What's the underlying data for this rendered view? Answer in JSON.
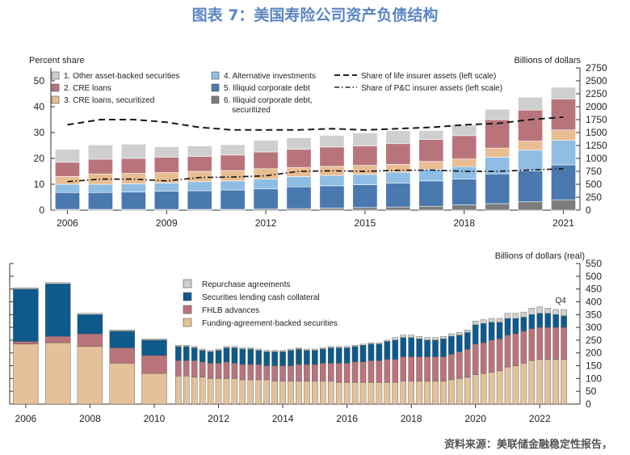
{
  "figure_title": "图表 7：美国寿险公司资产负债结构",
  "source": "资料来源：美联储金融稳定性报告，",
  "colors": {
    "title": "#5b86c5",
    "gray": "#cfcfcf",
    "mauve": "#b9747b",
    "peach": "#e9bd92",
    "lightblue": "#8fbde4",
    "steel": "#4a79b0",
    "darkgray": "#7c7c7c",
    "navy": "#0d5a8b",
    "tan": "#e4c19b"
  },
  "chart_data": [
    {
      "type": "bar",
      "stacked": true,
      "left_axis_label": "Percent share",
      "right_axis_label": "Billions of dollars",
      "y_ticks_left": [
        "0",
        "10",
        "20",
        "30",
        "40",
        "50"
      ],
      "y_ticks_right": [
        "0",
        "250",
        "500",
        "750",
        "1000",
        "1250",
        "1500",
        "1750",
        "2000",
        "2250",
        "2500",
        "2750"
      ],
      "ylim_left": [
        0,
        55
      ],
      "ylim_right": [
        0,
        2750
      ],
      "x_tick_labels": [
        "2006",
        "2009",
        "2012",
        "2015",
        "2018",
        "2021"
      ],
      "years": [
        "2006",
        "2007",
        "2008",
        "2009",
        "2010",
        "2011",
        "2012",
        "2013",
        "2014",
        "2015",
        "2016",
        "2017",
        "2018",
        "2019",
        "2020",
        "2021"
      ],
      "legend": [
        {
          "label": "1. Other asset-backed securities",
          "color": "#cfcfcf"
        },
        {
          "label": "2. CRE loans",
          "color": "#b9747b"
        },
        {
          "label": "3. CRE loans, securitized",
          "color": "#e9bd92"
        },
        {
          "label": "4. Alternative investments",
          "color": "#8fbde4"
        },
        {
          "label": "5. Illiquid corporate debt",
          "color": "#4a79b0"
        },
        {
          "label": "6. Illiquid corporate debt, securitized",
          "color": "#7c7c7c"
        },
        {
          "label": "Share of life insurer assets (left scale)",
          "style": "dashed"
        },
        {
          "label": "Share of P&C insurer assets (left scale)",
          "style": "dashdot"
        }
      ],
      "series": [
        {
          "name": "6. Illiquid corporate debt, securitized",
          "color": "#7c7c7c",
          "values": [
            0.3,
            0.3,
            0.3,
            0.3,
            0.3,
            0.3,
            0.4,
            0.6,
            0.8,
            1.0,
            1.2,
            1.5,
            2.0,
            2.5,
            3.2,
            4.0
          ]
        },
        {
          "name": "5. Illiquid corporate debt",
          "color": "#4a79b0",
          "values": [
            6.5,
            6.5,
            6.7,
            7.0,
            7.2,
            7.5,
            7.8,
            8.4,
            8.6,
            8.8,
            9.3,
            9.8,
            10.0,
            11.5,
            12.0,
            13.5
          ]
        },
        {
          "name": "4. Alternative investments",
          "color": "#8fbde4",
          "values": [
            3.2,
            3.2,
            3.2,
            3.2,
            3.5,
            3.5,
            3.8,
            4.0,
            4.0,
            4.0,
            4.2,
            4.5,
            4.8,
            6.5,
            8.0,
            9.5
          ]
        },
        {
          "name": "3. CRE loans, securitized",
          "color": "#e9bd92",
          "values": [
            3.0,
            4.0,
            4.0,
            4.0,
            4.0,
            4.0,
            4.0,
            3.5,
            3.5,
            3.5,
            3.0,
            3.0,
            3.0,
            3.5,
            3.5,
            4.0
          ]
        },
        {
          "name": "2. CRE loans",
          "color": "#b9747b",
          "values": [
            5.5,
            5.7,
            5.8,
            6.0,
            5.8,
            6.0,
            6.5,
            7.0,
            7.5,
            7.5,
            8.0,
            8.5,
            9.0,
            11.0,
            12.0,
            12.0
          ]
        },
        {
          "name": "1. Other asset-backed securities",
          "color": "#cfcfcf",
          "values": [
            5.0,
            5.5,
            5.5,
            4.0,
            4.0,
            4.0,
            4.5,
            4.5,
            4.5,
            5.0,
            5.0,
            3.5,
            4.2,
            4.0,
            5.0,
            4.5
          ]
        }
      ],
      "lines": [
        {
          "name": "Share of life insurer assets (left scale)",
          "style": "dashed",
          "values": [
            33.0,
            35.0,
            35.0,
            34.0,
            32.0,
            31.0,
            31.0,
            31.0,
            31.5,
            31.0,
            31.5,
            32.0,
            33.0,
            33.5,
            35.0,
            36.0
          ]
        },
        {
          "name": "Share of P&C insurer assets (left scale)",
          "style": "dashdot",
          "values": [
            11.0,
            12.0,
            12.0,
            11.3,
            12.6,
            12.8,
            13.3,
            15.0,
            15.2,
            15.0,
            15.4,
            15.5,
            15.0,
            15.0,
            15.5,
            16.0
          ]
        }
      ]
    },
    {
      "type": "bar",
      "stacked": true,
      "right_axis_label": "Billions of dollars (real)",
      "y_ticks_right": [
        "0",
        "50",
        "100",
        "150",
        "200",
        "250",
        "300",
        "350",
        "400",
        "450",
        "500",
        "550"
      ],
      "ylim_right": [
        0,
        550
      ],
      "x_tick_labels": [
        "2006",
        "2008",
        "2010",
        "2012",
        "2014",
        "2016",
        "2018",
        "2020",
        "2022"
      ],
      "x_range": [
        2005.5,
        2023.25
      ],
      "annotation": "Q4",
      "legend": [
        {
          "label": "Repurchase agreements",
          "color": "#cfcfcf"
        },
        {
          "label": "Securities lending cash collateral",
          "color": "#0d5a8b"
        },
        {
          "label": "FHLB advances",
          "color": "#b9747b"
        },
        {
          "label": "Funding-agreement-backed securities",
          "color": "#e4c19b"
        }
      ],
      "bars": [
        {
          "t": 2006.0,
          "fabs": 235,
          "fhlb": 10,
          "sec": 205,
          "repo": 5
        },
        {
          "t": 2007.0,
          "fabs": 240,
          "fhlb": 25,
          "sec": 205,
          "repo": 5
        },
        {
          "t": 2008.0,
          "fabs": 225,
          "fhlb": 50,
          "sec": 75,
          "repo": 5
        },
        {
          "t": 2009.0,
          "fabs": 160,
          "fhlb": 60,
          "sec": 65,
          "repo": 5
        },
        {
          "t": 2010.0,
          "fabs": 120,
          "fhlb": 70,
          "sec": 60,
          "repo": 5
        },
        {
          "t": 2010.75,
          "fabs": 110,
          "fhlb": 60,
          "sec": 55,
          "repo": 5
        },
        {
          "t": 2011.0,
          "fabs": 110,
          "fhlb": 60,
          "sec": 55,
          "repo": 5
        },
        {
          "t": 2011.25,
          "fabs": 105,
          "fhlb": 65,
          "sec": 50,
          "repo": 5
        },
        {
          "t": 2011.5,
          "fabs": 105,
          "fhlb": 60,
          "sec": 45,
          "repo": 5
        },
        {
          "t": 2011.75,
          "fabs": 100,
          "fhlb": 60,
          "sec": 45,
          "repo": 5
        },
        {
          "t": 2012.0,
          "fabs": 100,
          "fhlb": 60,
          "sec": 50,
          "repo": 5
        },
        {
          "t": 2012.25,
          "fabs": 100,
          "fhlb": 65,
          "sec": 55,
          "repo": 5
        },
        {
          "t": 2012.5,
          "fabs": 100,
          "fhlb": 60,
          "sec": 60,
          "repo": 5
        },
        {
          "t": 2012.75,
          "fabs": 95,
          "fhlb": 60,
          "sec": 60,
          "repo": 5
        },
        {
          "t": 2013.0,
          "fabs": 95,
          "fhlb": 60,
          "sec": 60,
          "repo": 5
        },
        {
          "t": 2013.25,
          "fabs": 95,
          "fhlb": 60,
          "sec": 55,
          "repo": 5
        },
        {
          "t": 2013.5,
          "fabs": 95,
          "fhlb": 55,
          "sec": 55,
          "repo": 5
        },
        {
          "t": 2013.75,
          "fabs": 90,
          "fhlb": 60,
          "sec": 55,
          "repo": 5
        },
        {
          "t": 2014.0,
          "fabs": 90,
          "fhlb": 60,
          "sec": 55,
          "repo": 5
        },
        {
          "t": 2014.25,
          "fabs": 90,
          "fhlb": 60,
          "sec": 60,
          "repo": 5
        },
        {
          "t": 2014.5,
          "fabs": 90,
          "fhlb": 65,
          "sec": 60,
          "repo": 5
        },
        {
          "t": 2014.75,
          "fabs": 90,
          "fhlb": 65,
          "sec": 55,
          "repo": 5
        },
        {
          "t": 2015.0,
          "fabs": 90,
          "fhlb": 65,
          "sec": 55,
          "repo": 5
        },
        {
          "t": 2015.25,
          "fabs": 90,
          "fhlb": 70,
          "sec": 55,
          "repo": 5
        },
        {
          "t": 2015.5,
          "fabs": 90,
          "fhlb": 70,
          "sec": 60,
          "repo": 5
        },
        {
          "t": 2015.75,
          "fabs": 85,
          "fhlb": 75,
          "sec": 60,
          "repo": 5
        },
        {
          "t": 2016.0,
          "fabs": 85,
          "fhlb": 75,
          "sec": 60,
          "repo": 5
        },
        {
          "t": 2016.25,
          "fabs": 85,
          "fhlb": 80,
          "sec": 60,
          "repo": 5
        },
        {
          "t": 2016.5,
          "fabs": 85,
          "fhlb": 80,
          "sec": 65,
          "repo": 5
        },
        {
          "t": 2016.75,
          "fabs": 85,
          "fhlb": 85,
          "sec": 65,
          "repo": 5
        },
        {
          "t": 2017.0,
          "fabs": 85,
          "fhlb": 85,
          "sec": 65,
          "repo": 5
        },
        {
          "t": 2017.25,
          "fabs": 85,
          "fhlb": 90,
          "sec": 70,
          "repo": 5
        },
        {
          "t": 2017.5,
          "fabs": 85,
          "fhlb": 90,
          "sec": 75,
          "repo": 10
        },
        {
          "t": 2017.75,
          "fabs": 90,
          "fhlb": 95,
          "sec": 75,
          "repo": 10
        },
        {
          "t": 2018.0,
          "fabs": 90,
          "fhlb": 95,
          "sec": 75,
          "repo": 10
        },
        {
          "t": 2018.25,
          "fabs": 90,
          "fhlb": 95,
          "sec": 70,
          "repo": 10
        },
        {
          "t": 2018.5,
          "fabs": 90,
          "fhlb": 95,
          "sec": 65,
          "repo": 10
        },
        {
          "t": 2018.75,
          "fabs": 90,
          "fhlb": 95,
          "sec": 65,
          "repo": 10
        },
        {
          "t": 2019.0,
          "fabs": 90,
          "fhlb": 95,
          "sec": 70,
          "repo": 10
        },
        {
          "t": 2019.25,
          "fabs": 95,
          "fhlb": 100,
          "sec": 70,
          "repo": 10
        },
        {
          "t": 2019.5,
          "fabs": 100,
          "fhlb": 105,
          "sec": 65,
          "repo": 10
        },
        {
          "t": 2019.75,
          "fabs": 105,
          "fhlb": 110,
          "sec": 65,
          "repo": 10
        },
        {
          "t": 2020.0,
          "fabs": 115,
          "fhlb": 120,
          "sec": 75,
          "repo": 15
        },
        {
          "t": 2020.25,
          "fabs": 120,
          "fhlb": 120,
          "sec": 75,
          "repo": 15
        },
        {
          "t": 2020.5,
          "fabs": 125,
          "fhlb": 125,
          "sec": 70,
          "repo": 15
        },
        {
          "t": 2020.75,
          "fabs": 130,
          "fhlb": 125,
          "sec": 65,
          "repo": 15
        },
        {
          "t": 2021.0,
          "fabs": 145,
          "fhlb": 125,
          "sec": 65,
          "repo": 20
        },
        {
          "t": 2021.25,
          "fabs": 150,
          "fhlb": 125,
          "sec": 60,
          "repo": 20
        },
        {
          "t": 2021.5,
          "fabs": 160,
          "fhlb": 125,
          "sec": 55,
          "repo": 20
        },
        {
          "t": 2021.75,
          "fabs": 170,
          "fhlb": 125,
          "sec": 55,
          "repo": 25
        },
        {
          "t": 2022.0,
          "fabs": 175,
          "fhlb": 125,
          "sec": 55,
          "repo": 25
        },
        {
          "t": 2022.25,
          "fabs": 175,
          "fhlb": 125,
          "sec": 55,
          "repo": 20
        },
        {
          "t": 2022.5,
          "fabs": 175,
          "fhlb": 125,
          "sec": 50,
          "repo": 20
        },
        {
          "t": 2022.75,
          "fabs": 175,
          "fhlb": 125,
          "sec": 45,
          "repo": 25
        }
      ]
    }
  ]
}
